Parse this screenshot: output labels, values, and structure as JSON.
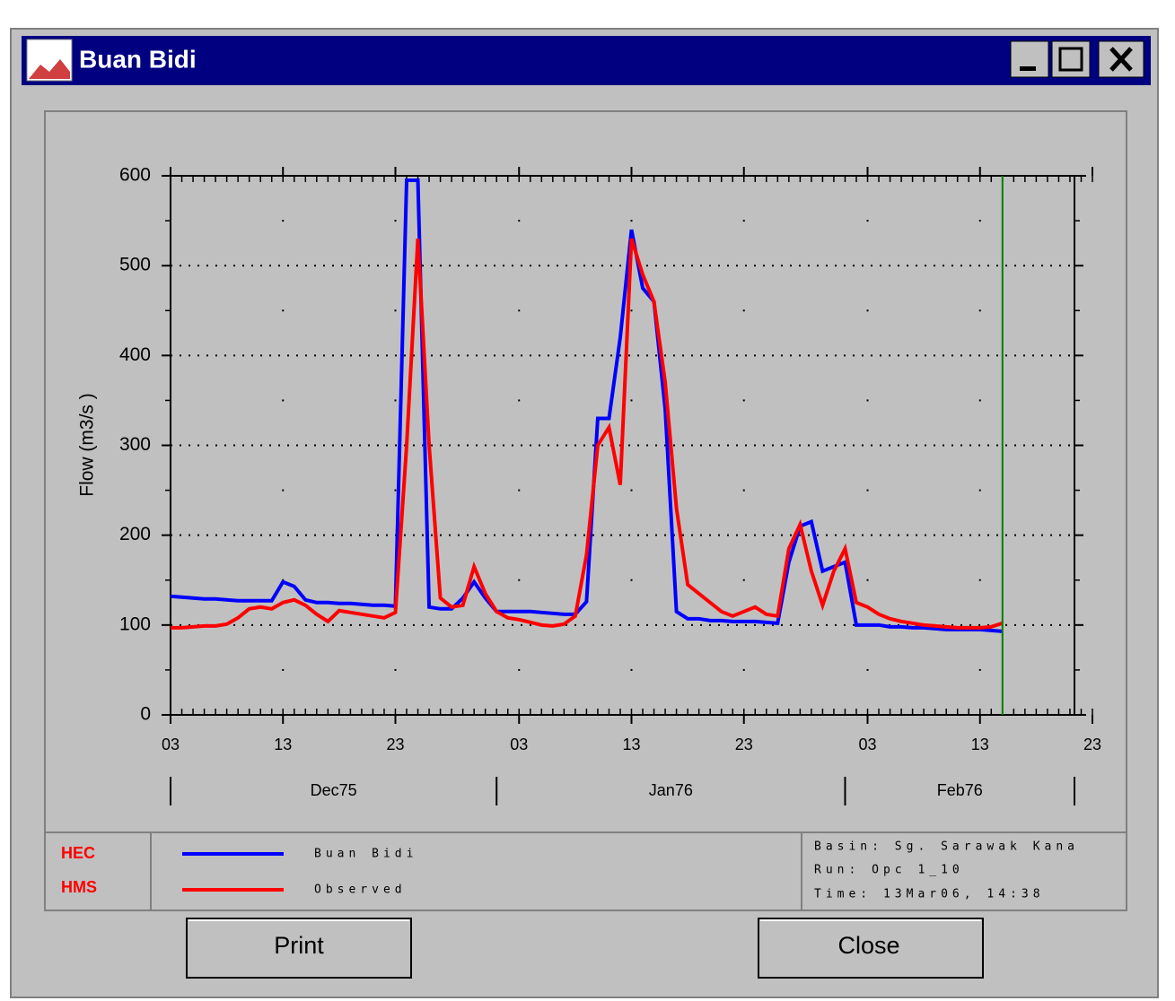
{
  "window": {
    "title": "Buan Bidi",
    "buttons": {
      "print": "Print",
      "close": "Close"
    }
  },
  "logo": {
    "line1": "HEC",
    "line2": "HMS"
  },
  "info": {
    "basin": "Basin:  Sg. Sarawak Kana",
    "run": "Run:    Opc 1_10",
    "time": "Time:   13Mar06, 14:38"
  },
  "chart_data": {
    "type": "line",
    "y_label": "Flow (m3/s   )",
    "x": [
      "1975-12-03",
      "1975-12-04",
      "1975-12-05",
      "1975-12-06",
      "1975-12-07",
      "1975-12-08",
      "1975-12-09",
      "1975-12-10",
      "1975-12-11",
      "1975-12-12",
      "1975-12-13",
      "1975-12-14",
      "1975-12-15",
      "1975-12-16",
      "1975-12-17",
      "1975-12-18",
      "1975-12-19",
      "1975-12-20",
      "1975-12-21",
      "1975-12-22",
      "1975-12-23",
      "1975-12-24",
      "1975-12-25",
      "1975-12-26",
      "1975-12-27",
      "1975-12-28",
      "1975-12-29",
      "1975-12-30",
      "1975-12-31",
      "1976-01-01",
      "1976-01-02",
      "1976-01-03",
      "1976-01-04",
      "1976-01-05",
      "1976-01-06",
      "1976-01-07",
      "1976-01-08",
      "1976-01-09",
      "1976-01-10",
      "1976-01-11",
      "1976-01-12",
      "1976-01-13",
      "1976-01-14",
      "1976-01-15",
      "1976-01-16",
      "1976-01-17",
      "1976-01-18",
      "1976-01-19",
      "1976-01-20",
      "1976-01-21",
      "1976-01-22",
      "1976-01-23",
      "1976-01-24",
      "1976-01-25",
      "1976-01-26",
      "1976-01-27",
      "1976-01-28",
      "1976-01-29",
      "1976-01-30",
      "1976-01-31",
      "1976-02-01",
      "1976-02-02",
      "1976-02-03",
      "1976-02-04",
      "1976-02-05",
      "1976-02-06",
      "1976-02-07",
      "1976-02-08",
      "1976-02-09",
      "1976-02-10",
      "1976-02-11",
      "1976-02-12",
      "1976-02-13",
      "1976-02-14",
      "1976-02-15"
    ],
    "series": [
      {
        "name": "Buan Bidi",
        "color": "#0000ff",
        "values": [
          132,
          131,
          130,
          129,
          129,
          128,
          127,
          127,
          127,
          127,
          148,
          143,
          128,
          125,
          125,
          124,
          124,
          123,
          122,
          122,
          121,
          595,
          595,
          120,
          118,
          118,
          130,
          148,
          130,
          115,
          115,
          115,
          115,
          114,
          113,
          112,
          112,
          126,
          330,
          330,
          420,
          540,
          475,
          460,
          340,
          115,
          107,
          107,
          105,
          105,
          104,
          104,
          104,
          103,
          102,
          170,
          210,
          215,
          160,
          165,
          170,
          100,
          100,
          100,
          98,
          98,
          97,
          97,
          96,
          95,
          95,
          95,
          95,
          94,
          93
        ]
      },
      {
        "name": "Observed",
        "color": "#ff0000",
        "values": [
          97,
          97,
          98,
          99,
          99,
          101,
          108,
          118,
          120,
          118,
          125,
          128,
          122,
          112,
          104,
          116,
          114,
          112,
          110,
          108,
          114,
          300,
          530,
          300,
          130,
          120,
          122,
          165,
          135,
          115,
          108,
          106,
          103,
          100,
          99,
          101,
          110,
          178,
          300,
          320,
          256,
          530,
          490,
          460,
          370,
          230,
          145,
          135,
          125,
          115,
          110,
          115,
          120,
          112,
          110,
          185,
          212,
          160,
          122,
          160,
          185,
          125,
          120,
          112,
          107,
          104,
          102,
          100,
          99,
          98,
          97,
          97,
          97,
          98,
          102
        ]
      }
    ],
    "xlim": [
      "1975-12-03",
      "1976-02-23"
    ],
    "xticks": [
      {
        "value": "1975-12-03",
        "label": "03"
      },
      {
        "value": "1975-12-13",
        "label": "13"
      },
      {
        "value": "1975-12-23",
        "label": "23"
      },
      {
        "value": "1976-01-03",
        "label": "03"
      },
      {
        "value": "1976-01-13",
        "label": "13"
      },
      {
        "value": "1976-01-23",
        "label": "23"
      },
      {
        "value": "1976-02-03",
        "label": "03"
      },
      {
        "value": "1976-02-13",
        "label": "13"
      },
      {
        "value": "1976-02-23",
        "label": "23"
      }
    ],
    "month_labels": [
      "Dec75",
      "Jan76",
      "Feb76"
    ],
    "ylim": [
      0,
      600
    ],
    "yticks": [
      0,
      100,
      200,
      300,
      400,
      500,
      600
    ],
    "grid": true,
    "marker_x": "1976-02-15",
    "marker_color": "#008000"
  }
}
